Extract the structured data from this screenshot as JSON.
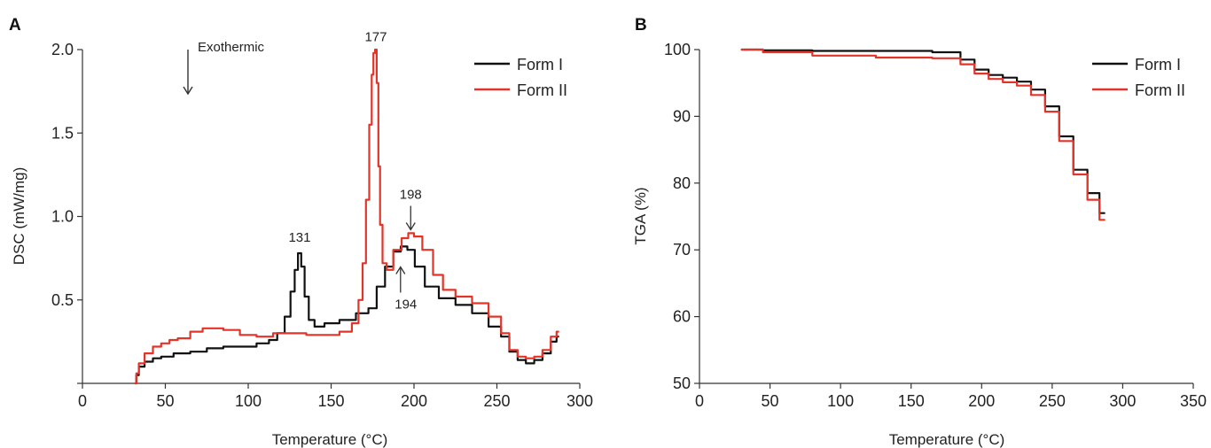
{
  "colors": {
    "form1": "#111111",
    "form2": "#e3342a"
  },
  "chart_data": [
    {
      "panel": "A",
      "type": "line",
      "xlabel": "Temperature (°C)",
      "ylabel": "DSC (mW/mg)",
      "xlim": [
        0,
        300
      ],
      "ylim": [
        0,
        2.0
      ],
      "xticks": [
        0,
        50,
        100,
        150,
        200,
        250,
        300
      ],
      "yticks": [
        0.5,
        1.0,
        1.5,
        2.0
      ],
      "ytick_labels": [
        "0.5",
        "1.0",
        "1.5",
        "2.0"
      ],
      "legend": {
        "position": "top-right",
        "entries": [
          "Form I",
          "Form II"
        ]
      },
      "exotherm_label": "Exothermic",
      "annotations": [
        {
          "text": "131",
          "x": 131,
          "y": 0.85,
          "arrow": "none"
        },
        {
          "text": "177",
          "x": 177,
          "y": 2.05,
          "arrow": "none"
        },
        {
          "text": "198",
          "x": 198,
          "y": 1.0,
          "arrow": "down"
        },
        {
          "text": "194",
          "x": 194,
          "y": 0.65,
          "arrow": "up"
        }
      ],
      "series": [
        {
          "name": "Form I",
          "color": "#111111",
          "x": [
            32,
            33,
            35,
            40,
            45,
            50,
            60,
            70,
            80,
            90,
            100,
            110,
            115,
            120,
            124,
            127,
            129,
            131,
            133,
            135,
            138,
            142,
            150,
            160,
            170,
            175,
            180,
            185,
            190,
            194,
            198,
            203,
            210,
            220,
            230,
            240,
            250,
            255,
            260,
            265,
            270,
            275,
            280,
            285,
            287
          ],
          "y": [
            0.0,
            0.05,
            0.1,
            0.13,
            0.15,
            0.16,
            0.18,
            0.19,
            0.21,
            0.22,
            0.22,
            0.24,
            0.26,
            0.3,
            0.4,
            0.55,
            0.68,
            0.78,
            0.7,
            0.52,
            0.38,
            0.34,
            0.36,
            0.38,
            0.42,
            0.45,
            0.58,
            0.7,
            0.79,
            0.82,
            0.8,
            0.7,
            0.58,
            0.51,
            0.47,
            0.42,
            0.34,
            0.28,
            0.19,
            0.14,
            0.12,
            0.14,
            0.18,
            0.25,
            0.28
          ]
        },
        {
          "name": "Form II",
          "color": "#e3342a",
          "x": [
            32,
            33,
            35,
            40,
            45,
            50,
            55,
            60,
            70,
            75,
            80,
            90,
            100,
            110,
            120,
            130,
            140,
            150,
            160,
            165,
            168,
            170,
            172,
            174,
            175,
            176,
            177,
            178,
            179,
            180,
            182,
            185,
            190,
            195,
            198,
            202,
            208,
            215,
            220,
            230,
            240,
            250,
            255,
            260,
            265,
            270,
            275,
            280,
            285,
            287
          ],
          "y": [
            0.0,
            0.06,
            0.12,
            0.18,
            0.22,
            0.24,
            0.26,
            0.27,
            0.31,
            0.33,
            0.33,
            0.32,
            0.29,
            0.28,
            0.3,
            0.3,
            0.29,
            0.29,
            0.31,
            0.36,
            0.5,
            0.72,
            1.1,
            1.55,
            1.85,
            1.98,
            2.0,
            1.8,
            1.3,
            0.95,
            0.72,
            0.68,
            0.8,
            0.87,
            0.9,
            0.88,
            0.8,
            0.65,
            0.56,
            0.52,
            0.48,
            0.4,
            0.3,
            0.2,
            0.16,
            0.15,
            0.16,
            0.2,
            0.28,
            0.31
          ]
        }
      ]
    },
    {
      "panel": "B",
      "type": "line",
      "xlabel": "Temperature (°C)",
      "ylabel": "TGA (%)",
      "xlim": [
        0,
        350
      ],
      "ylim": [
        50,
        100
      ],
      "xticks": [
        0,
        50,
        100,
        150,
        200,
        250,
        300,
        350
      ],
      "yticks": [
        50,
        60,
        70,
        80,
        90,
        100
      ],
      "ytick_labels": [
        "50",
        "60",
        "70",
        "80",
        "90",
        "100"
      ],
      "legend": {
        "position": "top-right",
        "entries": [
          "Form I",
          "Form II"
        ]
      },
      "series": [
        {
          "name": "Form I",
          "color": "#111111",
          "x": [
            30,
            60,
            100,
            150,
            180,
            190,
            200,
            210,
            220,
            230,
            240,
            250,
            260,
            270,
            280,
            287
          ],
          "y": [
            100,
            99.9,
            99.8,
            99.8,
            99.6,
            98.5,
            97,
            96.2,
            95.8,
            95.2,
            94,
            91.5,
            87,
            82,
            78.5,
            75.5
          ]
        },
        {
          "name": "Form II",
          "color": "#e3342a",
          "x": [
            30,
            60,
            100,
            150,
            180,
            190,
            200,
            210,
            220,
            230,
            240,
            250,
            260,
            270,
            280,
            287
          ],
          "y": [
            100,
            99.6,
            99.1,
            98.8,
            98.7,
            97.8,
            96.4,
            95.6,
            95.1,
            94.6,
            93.2,
            90.7,
            86.3,
            81.3,
            77.5,
            74.5
          ]
        }
      ]
    }
  ]
}
